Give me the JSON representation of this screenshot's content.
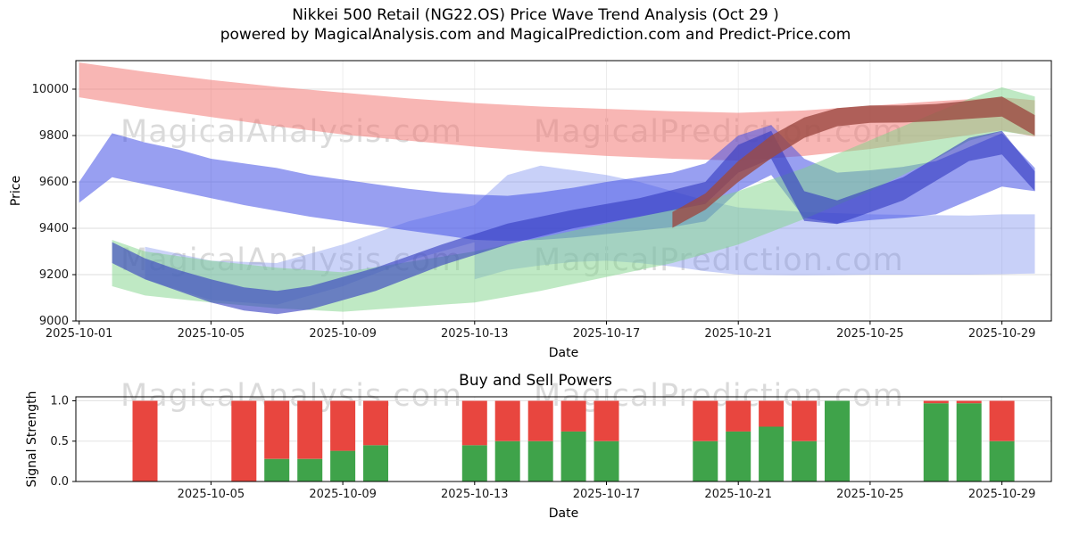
{
  "header": {
    "title_line1": "Nikkei 500 Retail (NG22.OS) Price Wave Trend Analysis (Oct 29 )",
    "title_line2": "powered by MagicalAnalysis.com and MagicalPrediction.com and Predict-Price.com"
  },
  "watermarks": {
    "left": "MagicalAnalysis.com",
    "right": "MagicalPrediction.com"
  },
  "chart_data": [
    {
      "type": "area",
      "title": "Nikkei 500 Retail (NG22.OS) Price Wave Trend Analysis (Oct 29 )",
      "xlabel": "Date",
      "ylabel": "Price",
      "ylim": [
        9000,
        10123
      ],
      "xlim_days": [
        0.9,
        30.5
      ],
      "grid": true,
      "yticks": [
        9000,
        9200,
        9400,
        9600,
        9800,
        10000
      ],
      "xticks": [
        {
          "day": 1,
          "label": "2025-10-01"
        },
        {
          "day": 5,
          "label": "2025-10-05"
        },
        {
          "day": 9,
          "label": "2025-10-09"
        },
        {
          "day": 13,
          "label": "2025-10-13"
        },
        {
          "day": 17,
          "label": "2025-10-17"
        },
        {
          "day": 21,
          "label": "2025-10-21"
        },
        {
          "day": 25,
          "label": "2025-10-25"
        },
        {
          "day": 29,
          "label": "2025-10-29"
        }
      ],
      "bands": [
        {
          "name": "upper-red-band",
          "color": "#f27a76",
          "opacity": 0.55,
          "days": [
            1,
            3,
            5,
            7,
            9,
            11,
            13,
            15,
            17,
            19,
            21,
            23,
            25,
            27,
            29,
            30
          ],
          "upper": [
            10115,
            10075,
            10040,
            10010,
            9985,
            9960,
            9940,
            9925,
            9915,
            9905,
            9898,
            9908,
            9928,
            9948,
            9965,
            9952
          ],
          "lower": [
            9965,
            9920,
            9880,
            9840,
            9805,
            9778,
            9752,
            9730,
            9712,
            9700,
            9692,
            9712,
            9742,
            9782,
            9822,
            9795
          ]
        },
        {
          "name": "wide-light-blue-band",
          "color": "#7d90ee",
          "opacity": 0.42,
          "days": [
            13,
            14,
            15,
            16,
            17,
            18,
            19,
            20,
            21,
            22,
            23,
            24,
            25,
            26,
            27,
            28,
            29,
            30
          ],
          "upper": [
            9500,
            9630,
            9670,
            9650,
            9630,
            9600,
            9560,
            9520,
            9490,
            9480,
            9470,
            9465,
            9460,
            9458,
            9456,
            9455,
            9460,
            9460
          ],
          "lower": [
            9180,
            9220,
            9240,
            9255,
            9260,
            9250,
            9235,
            9215,
            9200,
            9198,
            9197,
            9198,
            9200,
            9200,
            9200,
            9200,
            9202,
            9205
          ]
        },
        {
          "name": "light-blue-bridge-band",
          "color": "#7d90ee",
          "opacity": 0.4,
          "days": [
            3,
            5,
            7,
            9,
            11,
            13
          ],
          "upper": [
            9320,
            9260,
            9250,
            9330,
            9430,
            9500
          ],
          "lower": [
            9180,
            9090,
            9070,
            9150,
            9260,
            9340
          ]
        },
        {
          "name": "main-blue-band",
          "color": "#4450e6",
          "opacity": 0.55,
          "days": [
            1,
            2,
            3,
            4,
            5,
            6,
            7,
            8,
            9,
            10,
            11,
            12,
            13,
            14,
            15,
            16,
            17,
            18,
            19,
            20,
            21,
            22,
            23,
            24,
            25,
            26,
            27,
            28,
            29,
            30
          ],
          "upper": [
            9600,
            9810,
            9770,
            9740,
            9700,
            9680,
            9660,
            9630,
            9610,
            9590,
            9570,
            9555,
            9545,
            9540,
            9555,
            9575,
            9600,
            9620,
            9640,
            9680,
            9800,
            9845,
            9700,
            9640,
            9650,
            9665,
            9690,
            9750,
            9810,
            9660
          ],
          "lower": [
            9510,
            9620,
            9590,
            9560,
            9530,
            9500,
            9475,
            9450,
            9430,
            9410,
            9390,
            9370,
            9350,
            9345,
            9350,
            9360,
            9375,
            9390,
            9405,
            9430,
            9560,
            9630,
            9445,
            9420,
            9435,
            9445,
            9460,
            9520,
            9580,
            9560
          ]
        },
        {
          "name": "green-trend-band",
          "color": "#7fd48a",
          "opacity": 0.5,
          "days": [
            2,
            3,
            5,
            7,
            9,
            11,
            13,
            15,
            17,
            19,
            21,
            23,
            25,
            27,
            28,
            29,
            30
          ],
          "upper": [
            9350,
            9300,
            9260,
            9230,
            9210,
            9255,
            9300,
            9360,
            9420,
            9480,
            9560,
            9660,
            9780,
            9900,
            9958,
            10008,
            9968
          ],
          "lower": [
            9150,
            9110,
            9080,
            9055,
            9040,
            9060,
            9080,
            9130,
            9190,
            9250,
            9330,
            9440,
            9560,
            9700,
            9778,
            9818,
            9798
          ]
        },
        {
          "name": "dark-blue-core-band",
          "color": "#3038c0",
          "opacity": 0.6,
          "days": [
            2,
            3,
            4,
            5,
            6,
            7,
            8,
            10,
            12,
            14,
            16,
            18,
            20,
            21,
            22,
            23,
            24,
            26,
            28,
            29,
            30
          ],
          "upper": [
            9340,
            9270,
            9220,
            9180,
            9145,
            9130,
            9150,
            9230,
            9330,
            9420,
            9480,
            9530,
            9600,
            9760,
            9820,
            9560,
            9520,
            9620,
            9790,
            9820,
            9645
          ],
          "lower": [
            9250,
            9180,
            9130,
            9080,
            9045,
            9030,
            9050,
            9130,
            9240,
            9330,
            9400,
            9450,
            9505,
            9640,
            9700,
            9432,
            9418,
            9520,
            9690,
            9718,
            9560
          ]
        },
        {
          "name": "dark-red-trend-band",
          "color": "#9c4a42",
          "opacity": 0.8,
          "days": [
            19,
            20,
            21,
            22,
            23,
            24,
            25,
            26,
            27,
            28,
            29,
            30
          ],
          "upper": [
            9470,
            9550,
            9690,
            9800,
            9878,
            9918,
            9930,
            9930,
            9936,
            9950,
            9968,
            9888
          ],
          "lower": [
            9402,
            9480,
            9600,
            9702,
            9790,
            9840,
            9855,
            9856,
            9862,
            9872,
            9882,
            9800
          ]
        }
      ]
    },
    {
      "type": "bar",
      "title": "Buy and Sell Powers",
      "xlabel": "Date",
      "ylabel": "Signal Strength",
      "ylim": [
        0,
        1.05
      ],
      "xlim_days": [
        0.9,
        30.5
      ],
      "grid": true,
      "yticks": [
        {
          "v": 0,
          "label": "0.0"
        },
        {
          "v": 0.5,
          "label": "0.5"
        },
        {
          "v": 1,
          "label": "1.0"
        }
      ],
      "xticks": [
        {
          "day": 5,
          "label": "2025-10-05"
        },
        {
          "day": 9,
          "label": "2025-10-09"
        },
        {
          "day": 13,
          "label": "2025-10-13"
        },
        {
          "day": 17,
          "label": "2025-10-17"
        },
        {
          "day": 21,
          "label": "2025-10-21"
        },
        {
          "day": 25,
          "label": "2025-10-25"
        },
        {
          "day": 29,
          "label": "2025-10-29"
        }
      ],
      "series": [
        {
          "name": "Buy",
          "color": "#3fa34a"
        },
        {
          "name": "Sell",
          "color": "#e8463f"
        }
      ],
      "bars": [
        {
          "date": "2025-10-03",
          "day": 3,
          "buy": 0.0,
          "sell": 1.0
        },
        {
          "date": "2025-10-06",
          "day": 6,
          "buy": 0.0,
          "sell": 1.0
        },
        {
          "date": "2025-10-07",
          "day": 7,
          "buy": 0.28,
          "sell": 0.72
        },
        {
          "date": "2025-10-08",
          "day": 8,
          "buy": 0.28,
          "sell": 0.72
        },
        {
          "date": "2025-10-09",
          "day": 9,
          "buy": 0.38,
          "sell": 0.62
        },
        {
          "date": "2025-10-10",
          "day": 10,
          "buy": 0.45,
          "sell": 0.55
        },
        {
          "date": "2025-10-13",
          "day": 13,
          "buy": 0.45,
          "sell": 0.55
        },
        {
          "date": "2025-10-14",
          "day": 14,
          "buy": 0.5,
          "sell": 0.5
        },
        {
          "date": "2025-10-15",
          "day": 15,
          "buy": 0.5,
          "sell": 0.5
        },
        {
          "date": "2025-10-16",
          "day": 16,
          "buy": 0.62,
          "sell": 0.38
        },
        {
          "date": "2025-10-17",
          "day": 17,
          "buy": 0.5,
          "sell": 0.5
        },
        {
          "date": "2025-10-20",
          "day": 20,
          "buy": 0.5,
          "sell": 0.5
        },
        {
          "date": "2025-10-21",
          "day": 21,
          "buy": 0.62,
          "sell": 0.38
        },
        {
          "date": "2025-10-22",
          "day": 22,
          "buy": 0.68,
          "sell": 0.32
        },
        {
          "date": "2025-10-23",
          "day": 23,
          "buy": 0.5,
          "sell": 0.5
        },
        {
          "date": "2025-10-24",
          "day": 24,
          "buy": 1.0,
          "sell": 0.0
        },
        {
          "date": "2025-10-27",
          "day": 27,
          "buy": 0.97,
          "sell": 0.03
        },
        {
          "date": "2025-10-28",
          "day": 28,
          "buy": 0.97,
          "sell": 0.03
        },
        {
          "date": "2025-10-29",
          "day": 29,
          "buy": 0.5,
          "sell": 0.5
        }
      ]
    }
  ]
}
